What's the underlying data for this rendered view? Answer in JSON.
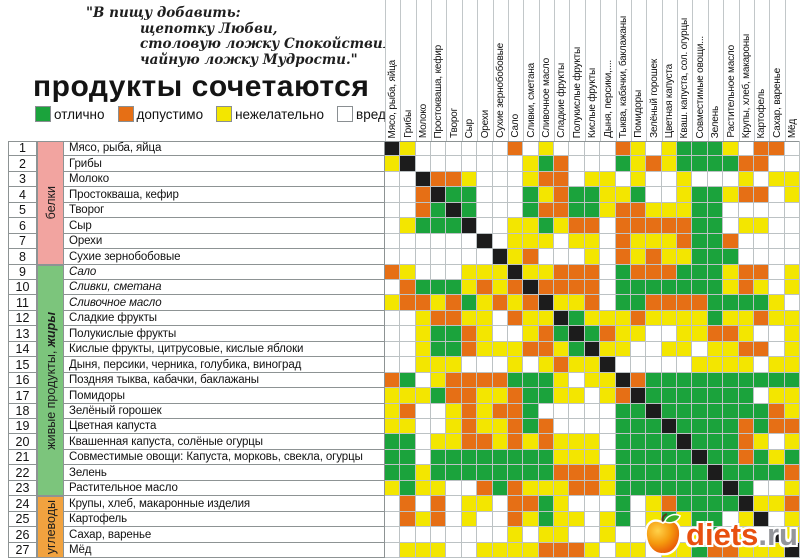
{
  "quote": {
    "lines": [
      "\"В пищу добавить:",
      "щепотку Любви,",
      "столовую ложку Спокойствия,",
      "чайную ложку Мудрости.\""
    ]
  },
  "title": "продукты сочетаются",
  "legend": [
    {
      "key": "G",
      "label": "отлично",
      "color": "#1ba33c"
    },
    {
      "key": "O",
      "label": "допустимо",
      "color": "#e66f15"
    },
    {
      "key": "Y",
      "label": "нежелательно",
      "color": "#f3e600"
    },
    {
      "key": "W",
      "label": "вредно",
      "color": "#ffffff"
    }
  ],
  "chart_data": {
    "type": "heatmap",
    "value_legend": {
      "G": "отлично",
      "O": "допустимо",
      "Y": "нежелательно",
      "W": "вредно",
      "B": "диагональ (сам продукт)"
    },
    "status_colors": {
      "G": "#1ba33c",
      "O": "#e66f15",
      "Y": "#f3e600",
      "W": "#ffffff",
      "B": "#1c1c1c"
    },
    "categories": [
      {
        "label": "белки",
        "em": "",
        "from": 1,
        "to": 8,
        "color": "#f2a4a0"
      },
      {
        "label": "живые продукты, ",
        "em": "жиры",
        "from": 9,
        "to": 23,
        "color": "#7cc57c"
      },
      {
        "label": "углеводы",
        "em": "",
        "from": 24,
        "to": 27,
        "color": "#f1a23f"
      }
    ],
    "columns": [
      "Мясо, рыба, яйца",
      "Грибы",
      "Молоко",
      "Простокваша, кефир",
      "Творог",
      "Сыр",
      "Орехи",
      "Сухие зернобобовые",
      "Сало",
      "Сливки, сметана",
      "Сливочное масло",
      "Сладкие фрукты",
      "Полукислые фрукты",
      "Кислые фрукты",
      "Дыня, персики,....",
      "Тыква, кабачки, баклажаны",
      "Помидоры",
      "Зелёный горошек",
      "Цветная капуста",
      "Кваш. капуста, сол. огурцы",
      "Совместимые овощи...",
      "Зелень",
      "Растительное масло",
      "Крупы, хлеб, макароны",
      "Картофель",
      "Сахар, варенье",
      "Мёд"
    ],
    "rows": [
      {
        "n": 1,
        "label": "Мясо, рыба, яйца",
        "italic": false
      },
      {
        "n": 2,
        "label": "Грибы",
        "italic": false
      },
      {
        "n": 3,
        "label": "Молоко",
        "italic": false
      },
      {
        "n": 4,
        "label": "Простокваша, кефир",
        "italic": false
      },
      {
        "n": 5,
        "label": "Творог",
        "italic": false
      },
      {
        "n": 6,
        "label": "Сыр",
        "italic": false
      },
      {
        "n": 7,
        "label": "Орехи",
        "italic": false
      },
      {
        "n": 8,
        "label": "Сухие зернобобовые",
        "italic": false
      },
      {
        "n": 9,
        "label": "Сало",
        "italic": true
      },
      {
        "n": 10,
        "label": "Сливки, сметана",
        "italic": true
      },
      {
        "n": 11,
        "label": "Сливочное масло",
        "italic": true
      },
      {
        "n": 12,
        "label": "Сладкие фрукты",
        "italic": false
      },
      {
        "n": 13,
        "label": "Полукислые фрукты",
        "italic": false
      },
      {
        "n": 14,
        "label": "Кислые фрукты, цитрусовые, кислые яблоки",
        "italic": false
      },
      {
        "n": 15,
        "label": "Дыня, персики, черника, голубика, виноград",
        "italic": false
      },
      {
        "n": 16,
        "label": "Поздняя тыква, кабачки, баклажаны",
        "italic": false
      },
      {
        "n": 17,
        "label": "Помидоры",
        "italic": false
      },
      {
        "n": 18,
        "label": "Зелёный горошек",
        "italic": false
      },
      {
        "n": 19,
        "label": "Цветная капуста",
        "italic": false
      },
      {
        "n": 20,
        "label": "Квашенная капуста, солёные огурцы",
        "italic": false
      },
      {
        "n": 21,
        "label": "Совместимые овощи: Капуста, морковь, свекла, огурцы",
        "italic": false
      },
      {
        "n": 22,
        "label": "Зелень",
        "italic": false
      },
      {
        "n": 23,
        "label": "Растительное масло",
        "italic": false
      },
      {
        "n": 24,
        "label": "Крупы, хлеб, макаронные изделия",
        "italic": false
      },
      {
        "n": 25,
        "label": "Картофель",
        "italic": false
      },
      {
        "n": 26,
        "label": "Сахар, варенье",
        "italic": false
      },
      {
        "n": 27,
        "label": "Мёд",
        "italic": false
      }
    ],
    "matrix": [
      "BYWWWWWWOWYWWWWOYWYGGGYWOOW",
      "YBWWWWWWWYGOWWWGYOYGGGGOOWW",
      "WWBOOYWWWYOOWYYWYWWYWWWYWYY",
      "WWOBGGWWWGYOGGYYGWWYGGYOOWY",
      "WWOGBGWWWGOOGGYOOYYYGGWWWWW",
      "WYGGGBWWYYGYOOWOOOOOGGWYYWW",
      "WWWWWWBWYYYWYYWOYYYOGGOWWWW",
      "WWWWWWWBYOWWWYWOYOYYGGGWWWW",
      "OYWWWYYYBYYOOOWGOOOGGGYOOWY",
      "WOGGGYOYOBOOOOWGGGGGGGYOYWY",
      "YOOYOGYOYOBYYOWGGOOOOGGGGYW",
      "WWYOOYYWOYYBGYYYOYYYYGYYOYY",
      "WWYGGOYWWYOGBGOYYWWYYOOYWWY",
      "WWYGGOYYYOOYGBYYWWYYWYYOOWY",
      "WWYYYWWWYWYOYYBWWWWWYYYYWYY",
      "OGWYOOOOGGGYWYYBOGGGGGGGGGG",
      "YYYGOOYYOGGYYWYOBGGGGGGGWYY",
      "YOWWYOYOOGWWWWWGGBGGGGGGGOY",
      "YYWWYOYYOGOWWWWGGGBGGGGOGOO",
      "GGWYYOOYOYOYYYWGGGGBGGGOYWY",
      "GGWGGGGGGGGYYYWGGGGGBGGOGYG",
      "GGYGGGGGGGGOOOYGGGGGGBGGGGO",
      "YGYYWWOGOYYYOOYGGGGGGGBGWWY",
      "WOWOWYYWOOGYWWWGWYOGGGGBYYO",
      "WOYOWYWWOYGYYWYGWYGYGGWYBWY",
      "WWWWWWWWYWYYWWYWWWWWYGWYWBY",
      "WYYYWWYYYYOOOYWYYWYYGOOYYYB"
    ]
  },
  "logo": {
    "name": "diets",
    "suffix": ".ru"
  }
}
